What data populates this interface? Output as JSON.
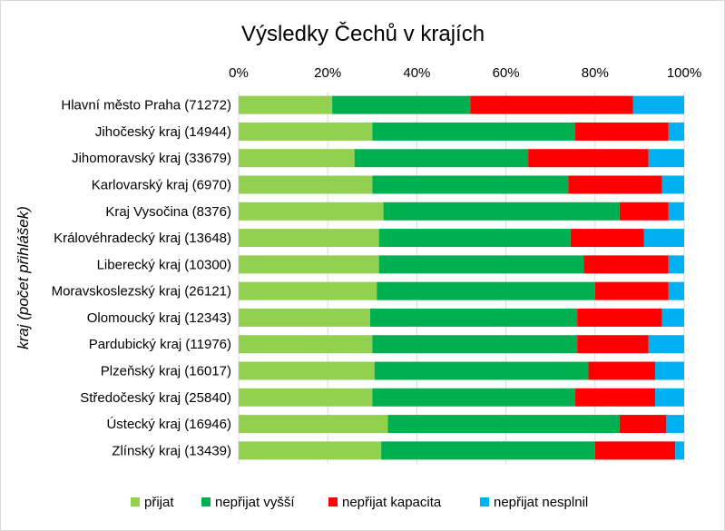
{
  "chart_data": {
    "type": "bar",
    "orientation": "horizontal",
    "stacked": "percent",
    "title": "Výsledky Čechů v krajích",
    "xlabel": "",
    "ylabel": "kraj (počet přihlášek)",
    "xlim": [
      0,
      100
    ],
    "x_ticks": [
      "0%",
      "20%",
      "40%",
      "60%",
      "80%",
      "100%"
    ],
    "grid": true,
    "legend_position": "bottom",
    "categories": [
      "Hlavní město Praha (71272)",
      "Jihočeský kraj (14944)",
      "Jihomoravský kraj (33679)",
      "Karlovarský kraj (6970)",
      "Kraj Vysočina (8376)",
      "Královéhradecký kraj (13648)",
      "Liberecký kraj (10300)",
      "Moravskoslezský kraj (26121)",
      "Olomoucký kraj (12343)",
      "Pardubický kraj (11976)",
      "Plzeňský kraj (16017)",
      "Středočeský kraj (25840)",
      "Ústecký kraj (16946)",
      "Zlínský kraj (13439)"
    ],
    "series": [
      {
        "name": "přijat",
        "color": "#92d050",
        "values": [
          21,
          30,
          26,
          30,
          32.5,
          31.5,
          31.5,
          31,
          29.5,
          30,
          30.5,
          30,
          33.5,
          32
        ]
      },
      {
        "name": "nepřijat vyšší",
        "color": "#00b050",
        "values": [
          31,
          45.5,
          39,
          44,
          53,
          43,
          46,
          49,
          46.5,
          46,
          48,
          45.5,
          52,
          48
        ]
      },
      {
        "name": "nepřijat kapacita",
        "color": "#ff0000",
        "values": [
          36.5,
          21,
          27,
          21,
          11,
          16.5,
          19,
          16.5,
          19,
          16,
          15,
          18,
          10.5,
          18
        ]
      },
      {
        "name": "nepřijat nesplnil",
        "color": "#00b0f0",
        "values": [
          11.5,
          3.5,
          8,
          5,
          3.5,
          9,
          3.5,
          3.5,
          5,
          8,
          6.5,
          6.5,
          4,
          2
        ]
      }
    ]
  }
}
